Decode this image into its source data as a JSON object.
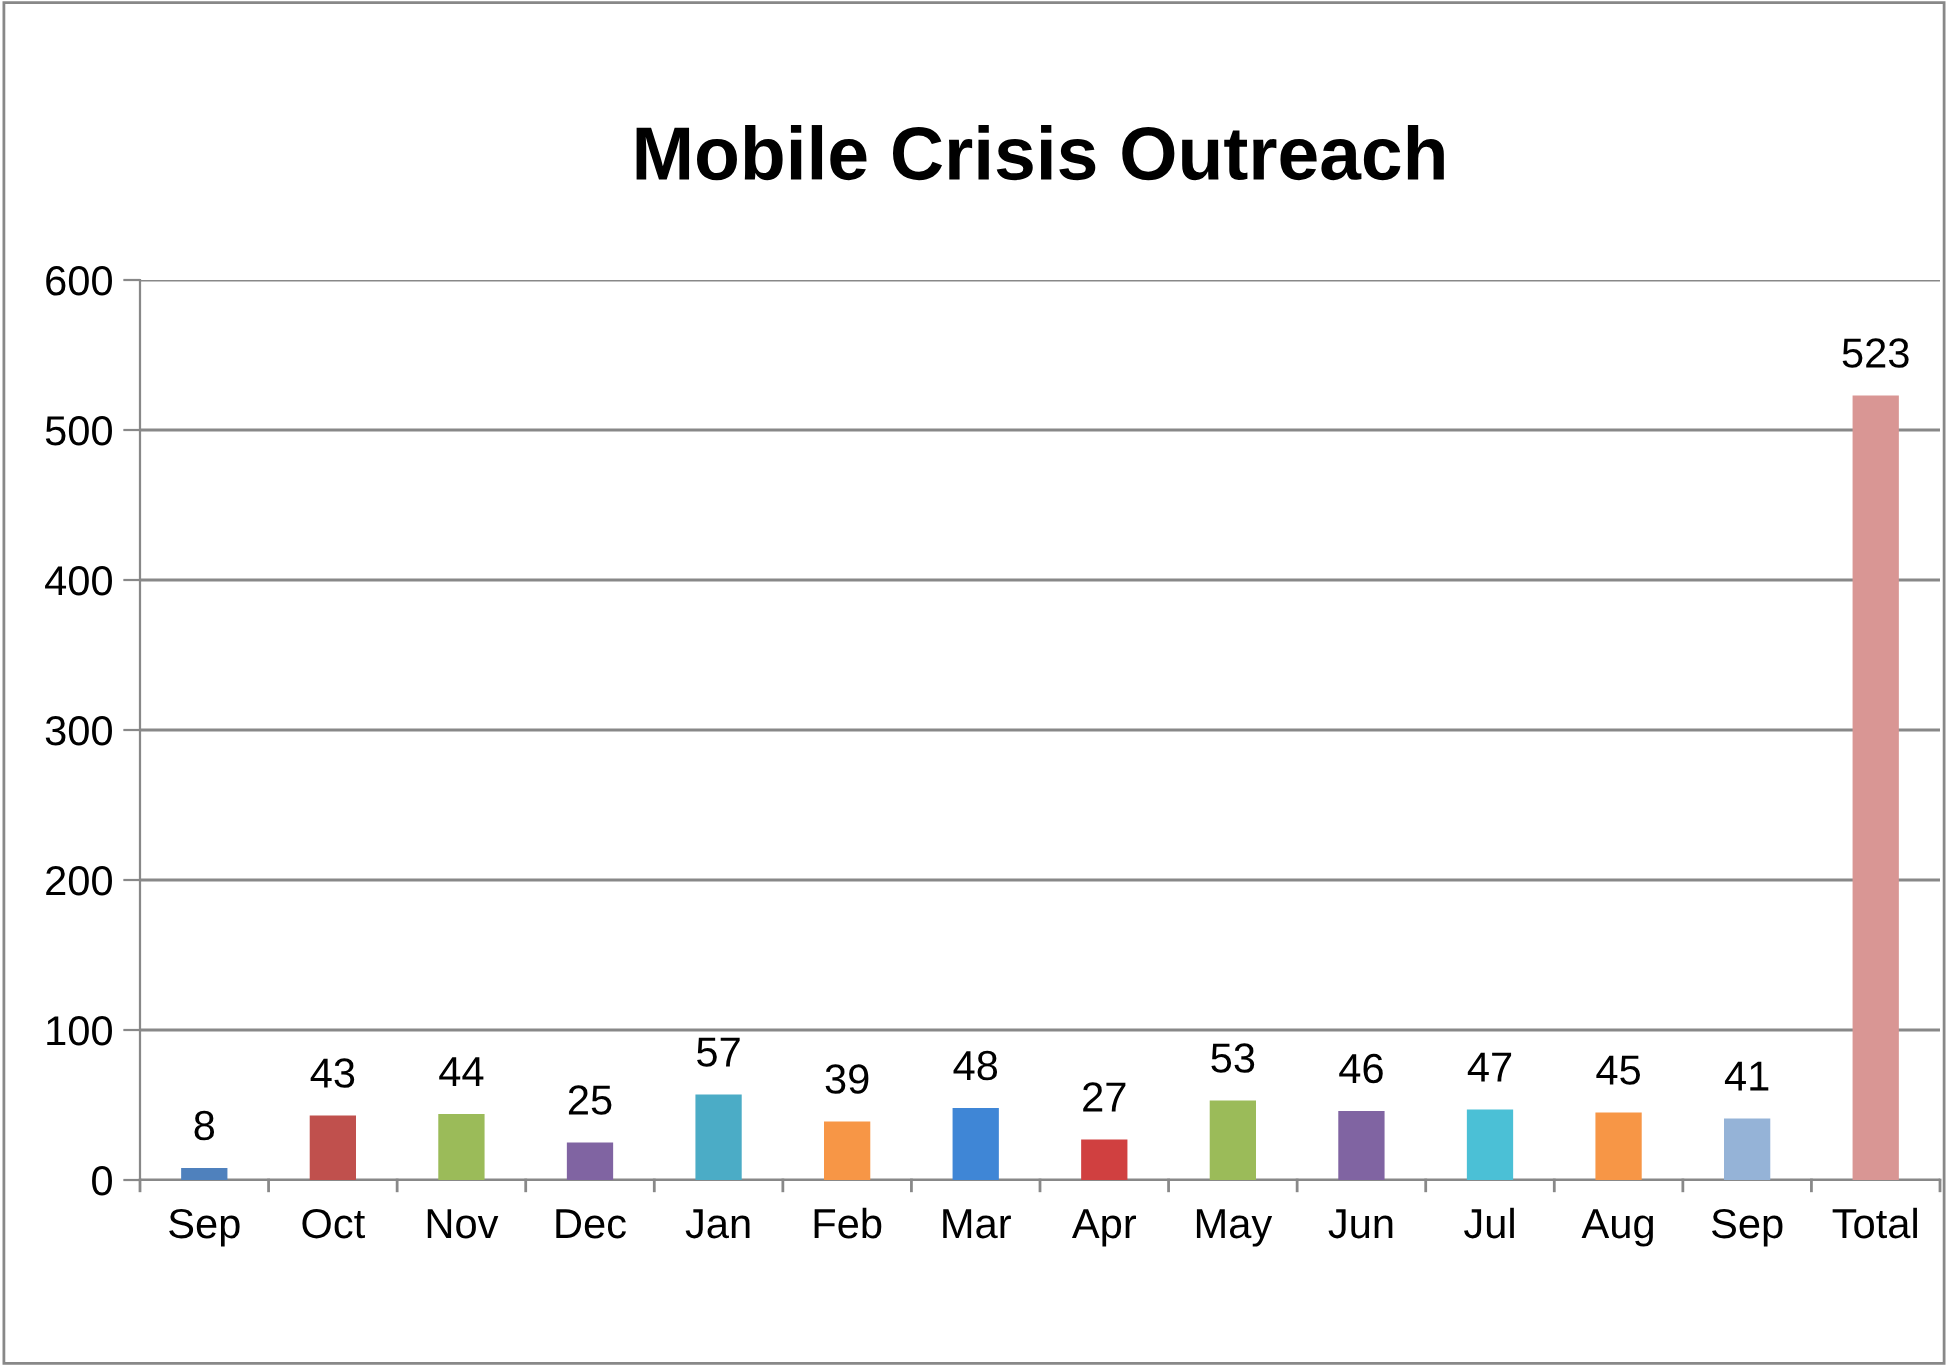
{
  "chart_data": {
    "type": "bar",
    "title": "Mobile Crisis Outreach",
    "categories": [
      "Sep",
      "Oct",
      "Nov",
      "Dec",
      "Jan",
      "Feb",
      "Mar",
      "Apr",
      "May",
      "Jun",
      "Jul",
      "Aug",
      "Sep",
      "Total"
    ],
    "values": [
      8,
      43,
      44,
      25,
      57,
      39,
      48,
      27,
      53,
      46,
      47,
      45,
      41,
      523
    ],
    "colors": [
      "#4f81bd",
      "#c0504d",
      "#9bbb59",
      "#8064a2",
      "#4bacc6",
      "#f79646",
      "#3f86d6",
      "#d04040",
      "#9bbb59",
      "#8064a2",
      "#4bc0d6",
      "#f79646",
      "#95b3d7",
      "#d99694"
    ],
    "ylim": [
      0,
      600
    ],
    "yticks": [
      0,
      100,
      200,
      300,
      400,
      500,
      600
    ],
    "grid": "y",
    "data_labels": true
  }
}
